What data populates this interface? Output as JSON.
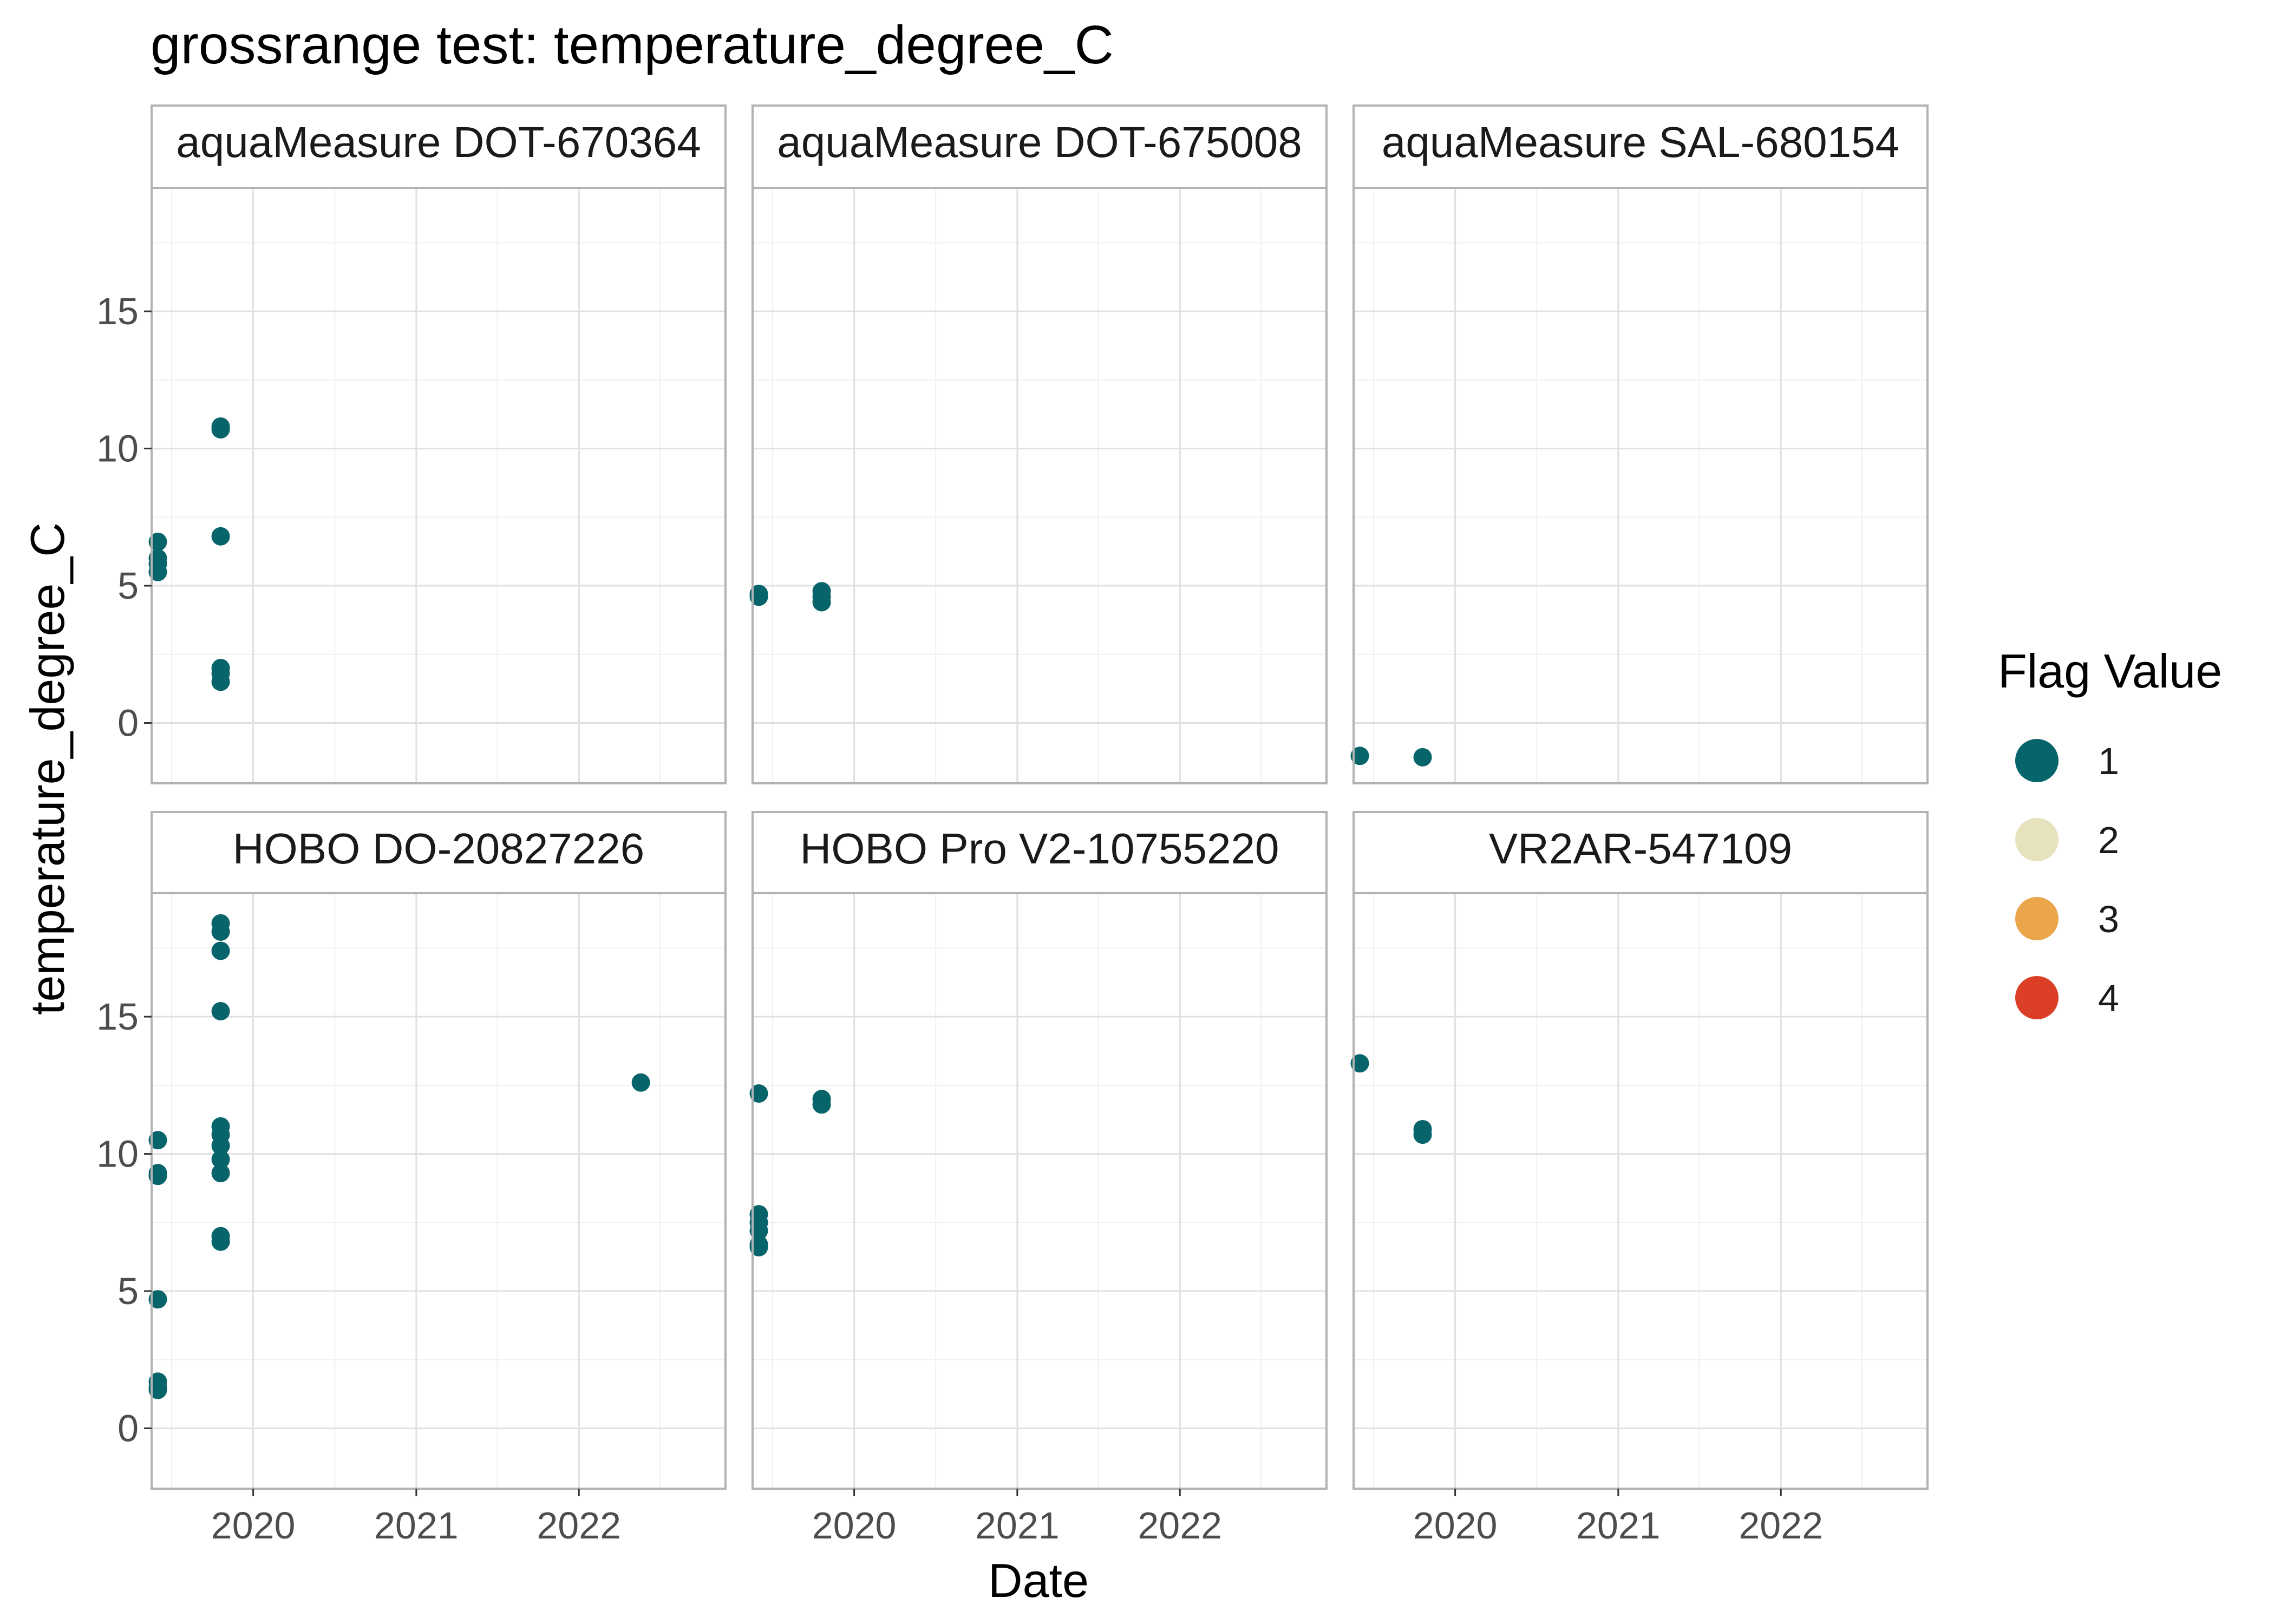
{
  "chart_data": {
    "type": "scatter",
    "title": "grossrange test: temperature_degree_C",
    "xlabel": "Date",
    "ylabel": "temperature_degree_C",
    "x_ticks": [
      "2020",
      "2021",
      "2022"
    ],
    "y_ticks": [
      "0",
      "5",
      "10",
      "15"
    ],
    "grid": true,
    "legend": {
      "title": "Flag Value",
      "position": "right",
      "items": [
        {
          "label": "1",
          "color": "#06646A"
        },
        {
          "label": "2",
          "color": "#E6E2BE"
        },
        {
          "label": "3",
          "color": "#EBA54A"
        },
        {
          "label": "4",
          "color": "#DB4026"
        }
      ]
    },
    "panels": [
      {
        "name": "aquaMeasure DOT-670364",
        "points": [
          {
            "date": "2019-06-01",
            "y": 6.6,
            "flag": 1
          },
          {
            "date": "2019-06-01",
            "y": 6.0,
            "flag": 1
          },
          {
            "date": "2019-06-01",
            "y": 5.8,
            "flag": 1
          },
          {
            "date": "2019-06-01",
            "y": 5.5,
            "flag": 1
          },
          {
            "date": "2019-10-20",
            "y": 10.8,
            "flag": 1
          },
          {
            "date": "2019-10-20",
            "y": 10.7,
            "flag": 1
          },
          {
            "date": "2019-10-20",
            "y": 6.8,
            "flag": 1
          },
          {
            "date": "2019-10-20",
            "y": 2.0,
            "flag": 1
          },
          {
            "date": "2019-10-20",
            "y": 1.8,
            "flag": 1
          },
          {
            "date": "2019-10-20",
            "y": 1.5,
            "flag": 1
          }
        ]
      },
      {
        "name": "aquaMeasure DOT-675008",
        "points": [
          {
            "date": "2019-06-01",
            "y": 4.7,
            "flag": 1
          },
          {
            "date": "2019-06-01",
            "y": 4.6,
            "flag": 1
          },
          {
            "date": "2019-10-20",
            "y": 4.8,
            "flag": 1
          },
          {
            "date": "2019-10-20",
            "y": 4.6,
            "flag": 1
          },
          {
            "date": "2019-10-20",
            "y": 4.4,
            "flag": 1
          }
        ]
      },
      {
        "name": "aquaMeasure SAL-680154",
        "points": [
          {
            "date": "2019-06-01",
            "y": -1.2,
            "flag": 1
          },
          {
            "date": "2019-10-20",
            "y": -1.25,
            "flag": 1
          }
        ]
      },
      {
        "name": "HOBO DO-20827226",
        "points": [
          {
            "date": "2019-06-01",
            "y": 10.5,
            "flag": 1
          },
          {
            "date": "2019-06-01",
            "y": 9.3,
            "flag": 1
          },
          {
            "date": "2019-06-01",
            "y": 9.2,
            "flag": 1
          },
          {
            "date": "2019-06-01",
            "y": 4.7,
            "flag": 1
          },
          {
            "date": "2019-06-01",
            "y": 1.7,
            "flag": 1
          },
          {
            "date": "2019-06-01",
            "y": 1.5,
            "flag": 1
          },
          {
            "date": "2019-06-01",
            "y": 1.4,
            "flag": 1
          },
          {
            "date": "2019-10-20",
            "y": 18.4,
            "flag": 1
          },
          {
            "date": "2019-10-20",
            "y": 18.1,
            "flag": 1
          },
          {
            "date": "2019-10-20",
            "y": 17.4,
            "flag": 1
          },
          {
            "date": "2019-10-20",
            "y": 15.2,
            "flag": 1
          },
          {
            "date": "2019-10-20",
            "y": 11.0,
            "flag": 1
          },
          {
            "date": "2019-10-20",
            "y": 10.7,
            "flag": 1
          },
          {
            "date": "2019-10-20",
            "y": 10.3,
            "flag": 1
          },
          {
            "date": "2019-10-20",
            "y": 9.8,
            "flag": 1
          },
          {
            "date": "2019-10-20",
            "y": 9.3,
            "flag": 1
          },
          {
            "date": "2019-10-20",
            "y": 7.0,
            "flag": 1
          },
          {
            "date": "2019-10-20",
            "y": 6.8,
            "flag": 1
          },
          {
            "date": "2022-05-20",
            "y": 12.6,
            "flag": 1
          }
        ]
      },
      {
        "name": "HOBO Pro V2-10755220",
        "points": [
          {
            "date": "2019-06-01",
            "y": 12.2,
            "flag": 1
          },
          {
            "date": "2019-06-01",
            "y": 7.8,
            "flag": 1
          },
          {
            "date": "2019-06-01",
            "y": 7.5,
            "flag": 1
          },
          {
            "date": "2019-06-01",
            "y": 7.2,
            "flag": 1
          },
          {
            "date": "2019-06-01",
            "y": 6.7,
            "flag": 1
          },
          {
            "date": "2019-06-01",
            "y": 6.6,
            "flag": 1
          },
          {
            "date": "2019-10-20",
            "y": 12.0,
            "flag": 1
          },
          {
            "date": "2019-10-20",
            "y": 11.8,
            "flag": 1
          }
        ]
      },
      {
        "name": "VR2AR-547109",
        "points": [
          {
            "date": "2019-06-01",
            "y": 13.3,
            "flag": 1
          },
          {
            "date": "2019-10-20",
            "y": 10.9,
            "flag": 1
          },
          {
            "date": "2019-10-20",
            "y": 10.7,
            "flag": 1
          }
        ]
      }
    ]
  }
}
